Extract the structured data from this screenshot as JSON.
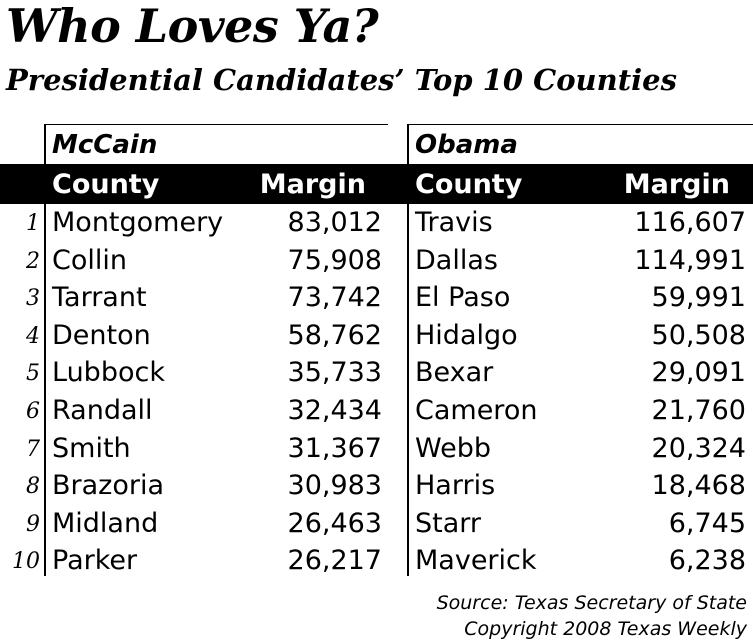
{
  "title": "Who Loves Ya?",
  "subtitle": "Presidential Candidates’ Top 10 Counties",
  "mccain": {
    "name": "McCain",
    "col_county": "County",
    "col_margin": "Margin",
    "rows": [
      {
        "county": "Montgomery",
        "margin": "83,012"
      },
      {
        "county": "Collin",
        "margin": "75,908"
      },
      {
        "county": "Tarrant",
        "margin": "73,742"
      },
      {
        "county": "Denton",
        "margin": "58,762"
      },
      {
        "county": "Lubbock",
        "margin": "35,733"
      },
      {
        "county": "Randall",
        "margin": "32,434"
      },
      {
        "county": "Smith",
        "margin": "31,367"
      },
      {
        "county": "Brazoria",
        "margin": "30,983"
      },
      {
        "county": "Midland",
        "margin": "26,463"
      },
      {
        "county": "Parker",
        "margin": "26,217"
      }
    ]
  },
  "obama": {
    "name": "Obama",
    "col_county": "County",
    "col_margin": "Margin",
    "rows": [
      {
        "county": "Travis",
        "margin": "116,607"
      },
      {
        "county": "Dallas",
        "margin": "114,991"
      },
      {
        "county": "El Paso",
        "margin": "59,991"
      },
      {
        "county": "Hidalgo",
        "margin": "50,508"
      },
      {
        "county": "Bexar",
        "margin": "29,091"
      },
      {
        "county": "Cameron",
        "margin": "21,760"
      },
      {
        "county": "Webb",
        "margin": "20,324"
      },
      {
        "county": "Harris",
        "margin": "18,468"
      },
      {
        "county": "Starr",
        "margin": "6,745"
      },
      {
        "county": "Maverick",
        "margin": "6,238"
      }
    ]
  },
  "ranks": [
    "1",
    "2",
    "3",
    "4",
    "5",
    "6",
    "7",
    "8",
    "9",
    "10"
  ],
  "source_line": "Source: Texas Secretary of State",
  "copyright_line": "Copyright 2008 Texas Weekly"
}
